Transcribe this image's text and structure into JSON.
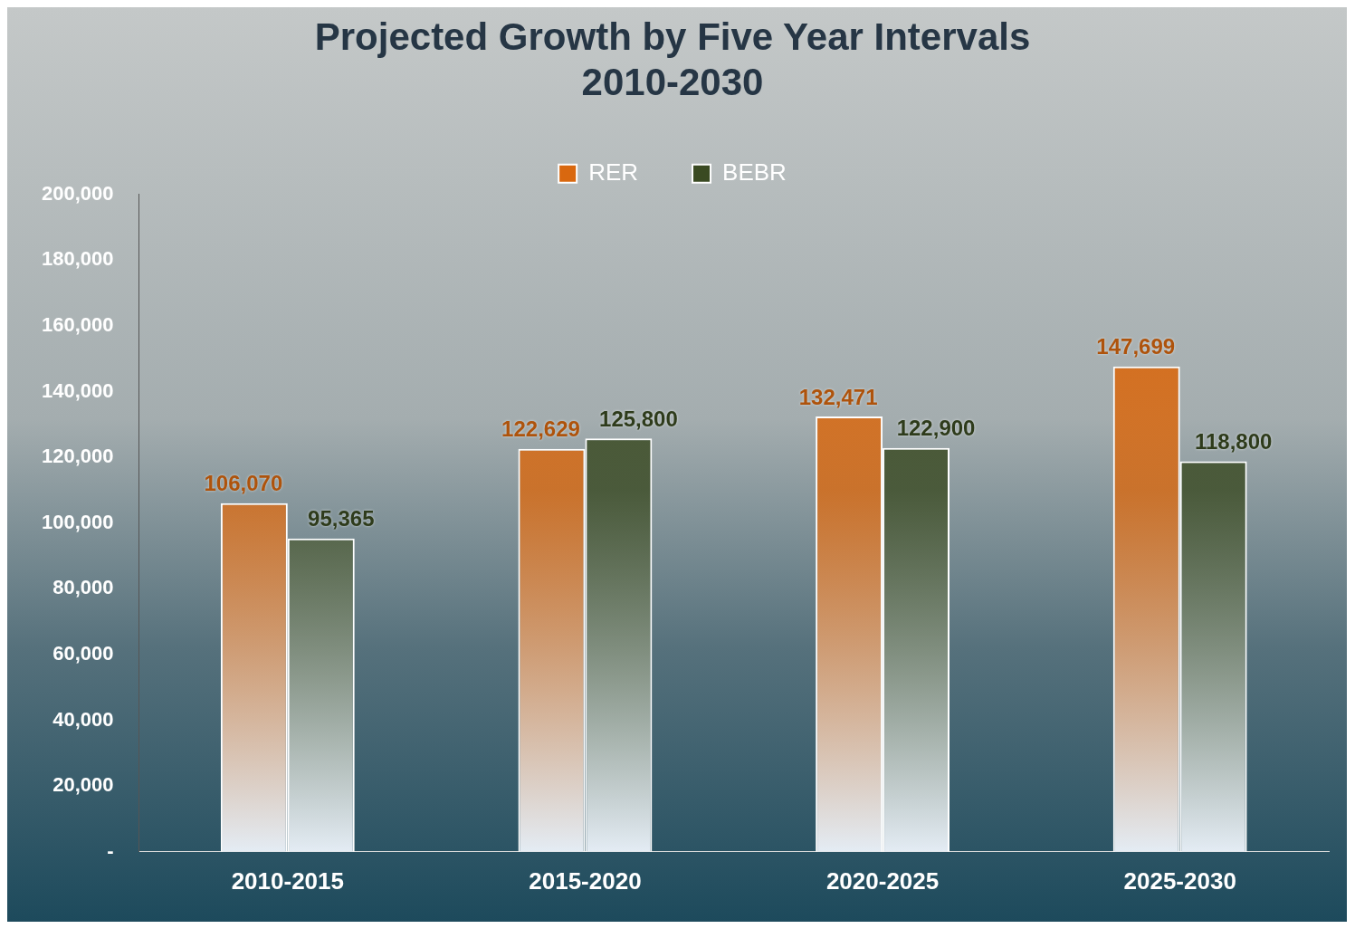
{
  "chart_data": {
    "type": "bar",
    "title": "Projected Growth by Five Year Intervals",
    "subtitle": "2010-2030",
    "categories": [
      "2010-2015",
      "2015-2020",
      "2020-2025",
      "2025-2030"
    ],
    "series": [
      {
        "name": "RER",
        "color": "#d9680f",
        "values": [
          106070,
          122629,
          132471,
          147699
        ],
        "value_labels": [
          "106,070",
          "122,629",
          "132,471",
          "147,699"
        ]
      },
      {
        "name": "BEBR",
        "color": "#3a4a22",
        "values": [
          95365,
          125800,
          122900,
          118800
        ],
        "value_labels": [
          "95,365",
          "125,800",
          "122,900",
          "118,800"
        ]
      }
    ],
    "ylim": [
      0,
      200000
    ],
    "yticks": [
      {
        "value": 0,
        "label": "-"
      },
      {
        "value": 20000,
        "label": "20,000"
      },
      {
        "value": 40000,
        "label": "40,000"
      },
      {
        "value": 60000,
        "label": "60,000"
      },
      {
        "value": 80000,
        "label": "80,000"
      },
      {
        "value": 100000,
        "label": "100,000"
      },
      {
        "value": 120000,
        "label": "120,000"
      },
      {
        "value": 140000,
        "label": "140,000"
      },
      {
        "value": 160000,
        "label": "160,000"
      },
      {
        "value": 180000,
        "label": "180,000"
      },
      {
        "value": 200000,
        "label": "200,000"
      }
    ],
    "grid": false,
    "legend": "top"
  }
}
